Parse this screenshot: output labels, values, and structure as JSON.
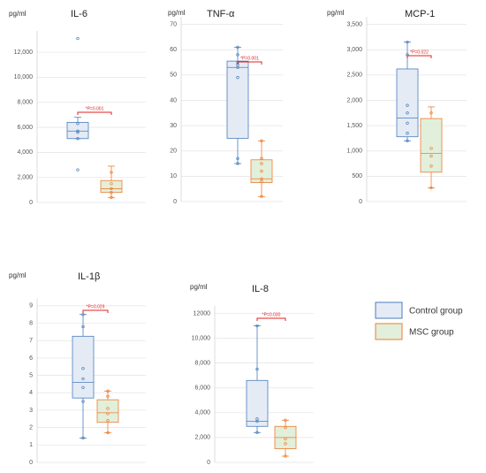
{
  "chart_data": [
    {
      "type": "box",
      "title": "IL-6",
      "y_label": "pg/ml",
      "annotation": "*P=0.001",
      "ylim": [
        0,
        13700
      ],
      "yticks": [
        0,
        {
          "value": 2000,
          "label": "2,000"
        },
        {
          "value": 4000,
          "label": "4,000"
        },
        {
          "value": 6000,
          "label": "6,000"
        },
        {
          "value": 8000,
          "label": "8,000"
        },
        {
          "value": 10000,
          "label": "10,000"
        },
        {
          "value": 12000,
          "label": "12,000"
        }
      ],
      "series": [
        {
          "name": "Control group",
          "color": "#4a7ebb",
          "fill": "#e4ebf5",
          "min": 5100,
          "q1": 5100,
          "median": 5700,
          "q3": 6400,
          "max": 6800,
          "points": [
            2600,
            5100,
            5600,
            5700,
            6300,
            13100
          ]
        },
        {
          "name": "MSC group",
          "color": "#ed7d31",
          "fill": "#e2efda",
          "min": 400,
          "q1": 800,
          "median": 1100,
          "q3": 1750,
          "max": 2900,
          "points": [
            400,
            800,
            1100,
            1500,
            2400
          ]
        }
      ]
    },
    {
      "type": "box",
      "title": "TNF-α",
      "y_label": "pg/ml",
      "annotation": "*P=0.001",
      "ylim": [
        0,
        73
      ],
      "yticks": [
        0,
        10,
        20,
        30,
        40,
        50,
        60,
        70
      ],
      "series": [
        {
          "name": "Control group",
          "color": "#4a7ebb",
          "fill": "#e4ebf5",
          "min": 15,
          "q1": 25,
          "median": 53,
          "q3": 55.5,
          "max": 61,
          "points": [
            15,
            17,
            49,
            53,
            54,
            55,
            58,
            61
          ]
        },
        {
          "name": "MSC group",
          "color": "#ed7d31",
          "fill": "#e2efda",
          "min": 2,
          "q1": 7.5,
          "median": 9,
          "q3": 16.5,
          "max": 24,
          "points": [
            2,
            8,
            9,
            12,
            15,
            17,
            24
          ]
        }
      ]
    },
    {
      "type": "box",
      "title": "MCP-1",
      "y_label": "pg/ml",
      "annotation": "*P=0.022",
      "ylim": [
        0,
        3650
      ],
      "yticks": [
        0,
        500,
        {
          "value": 1000,
          "label": "1,000"
        },
        {
          "value": 1500,
          "label": "1,500"
        },
        {
          "value": 2000,
          "label": "2,000"
        },
        {
          "value": 2500,
          "label": "2,500"
        },
        {
          "value": 3000,
          "label": "3,000"
        },
        {
          "value": 3500,
          "label": "3,500"
        }
      ],
      "series": [
        {
          "name": "Control group",
          "color": "#4a7ebb",
          "fill": "#e4ebf5",
          "min": 1200,
          "q1": 1280,
          "median": 1650,
          "q3": 2620,
          "max": 3150,
          "points": [
            1200,
            1350,
            1550,
            1750,
            1900,
            2900,
            3150
          ]
        },
        {
          "name": "MSC group",
          "color": "#ed7d31",
          "fill": "#e2efda",
          "min": 270,
          "q1": 580,
          "median": 950,
          "q3": 1640,
          "max": 1870,
          "points": [
            270,
            700,
            900,
            1050,
            1750
          ]
        }
      ]
    },
    {
      "type": "box",
      "title": "IL-1β",
      "y_label": "pg/ml",
      "annotation": "*P=0.029",
      "ylim": [
        0,
        9.4
      ],
      "yticks": [
        0,
        1,
        2,
        3,
        4,
        5,
        6,
        7,
        8,
        9
      ],
      "series": [
        {
          "name": "Control group",
          "color": "#4a7ebb",
          "fill": "#e4ebf5",
          "min": 1.4,
          "q1": 3.7,
          "median": 4.6,
          "q3": 7.25,
          "max": 8.5,
          "points": [
            1.4,
            3.5,
            4.3,
            4.8,
            5.4,
            7.8,
            8.5
          ]
        },
        {
          "name": "MSC group",
          "color": "#ed7d31",
          "fill": "#e2efda",
          "min": 1.7,
          "q1": 2.3,
          "median": 2.85,
          "q3": 3.6,
          "max": 4.1,
          "points": [
            1.7,
            2.4,
            2.8,
            3.1,
            3.8,
            4.1
          ]
        }
      ]
    },
    {
      "type": "box",
      "title": "IL-8",
      "y_label": "pg/ml",
      "annotation": "*P=0.030",
      "ylim": [
        0,
        12600
      ],
      "yticks": [
        0,
        {
          "value": 2000,
          "label": "2,000"
        },
        {
          "value": 4000,
          "label": "4,000"
        },
        {
          "value": 6000,
          "label": "6,000"
        },
        {
          "value": 8000,
          "label": "8,000"
        },
        {
          "value": 10000,
          "label": "10,000"
        },
        12000
      ],
      "series": [
        {
          "name": "Control group",
          "color": "#4a7ebb",
          "fill": "#e4ebf5",
          "min": 2400,
          "q1": 2900,
          "median": 3300,
          "q3": 6600,
          "max": 11000,
          "points": [
            2400,
            3300,
            3500,
            7500,
            11000
          ]
        },
        {
          "name": "MSC group",
          "color": "#ed7d31",
          "fill": "#e2efda",
          "min": 500,
          "q1": 1100,
          "median": 2000,
          "q3": 2900,
          "max": 3400,
          "points": [
            500,
            1500,
            1900,
            2800,
            3400
          ]
        }
      ]
    }
  ]
}
